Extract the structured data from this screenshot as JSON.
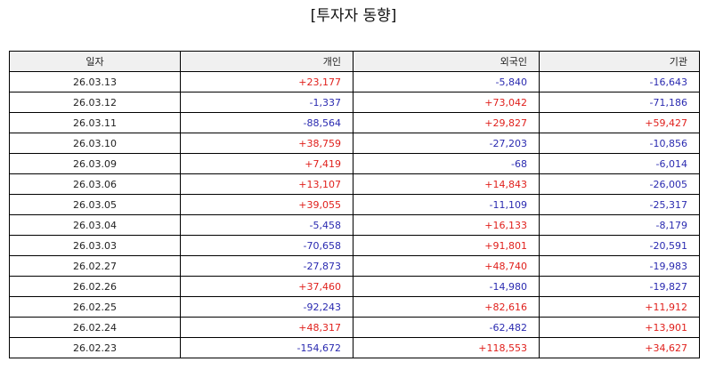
{
  "title": "[투자자 동향]",
  "colors": {
    "positive": "#e0201c",
    "negative": "#2a2ab0",
    "header_bg": "#f0f0f0"
  },
  "table": {
    "headers": [
      "일자",
      "개인",
      "외국인",
      "기관"
    ],
    "rows": [
      [
        "26.03.13",
        "+23,177",
        "-5,840",
        "-16,643"
      ],
      [
        "26.03.12",
        "-1,337",
        "+73,042",
        "-71,186"
      ],
      [
        "26.03.11",
        "-88,564",
        "+29,827",
        "+59,427"
      ],
      [
        "26.03.10",
        "+38,759",
        "-27,203",
        "-10,856"
      ],
      [
        "26.03.09",
        "+7,419",
        "-68",
        "-6,014"
      ],
      [
        "26.03.06",
        "+13,107",
        "+14,843",
        "-26,005"
      ],
      [
        "26.03.05",
        "+39,055",
        "-11,109",
        "-25,317"
      ],
      [
        "26.03.04",
        "-5,458",
        "+16,133",
        "-8,179"
      ],
      [
        "26.03.03",
        "-70,658",
        "+91,801",
        "-20,591"
      ],
      [
        "26.02.27",
        "-27,873",
        "+48,740",
        "-19,983"
      ],
      [
        "26.02.26",
        "+37,460",
        "-14,980",
        "-19,827"
      ],
      [
        "26.02.25",
        "-92,243",
        "+82,616",
        "+11,912"
      ],
      [
        "26.02.24",
        "+48,317",
        "-62,482",
        "+13,901"
      ],
      [
        "26.02.23",
        "-154,672",
        "+118,553",
        "+34,627"
      ]
    ]
  }
}
